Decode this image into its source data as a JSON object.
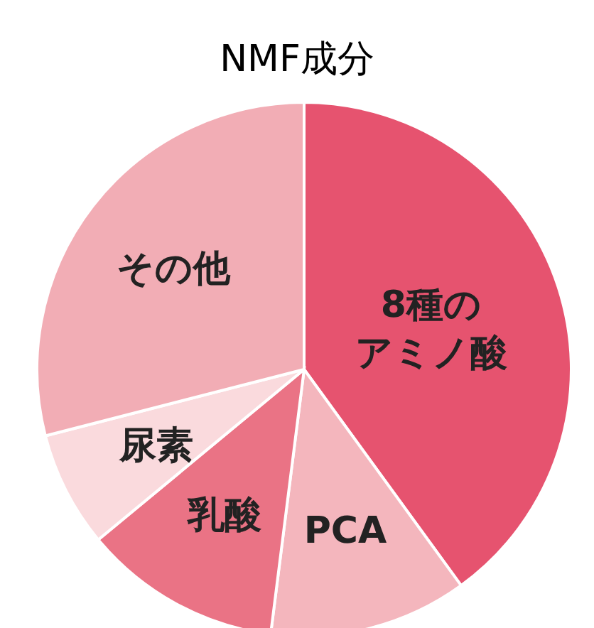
{
  "chart_data": {
    "type": "pie",
    "title": "NMF成分",
    "categories": [
      "8種のアミノ酸",
      "PCA",
      "乳酸",
      "尿素",
      "その他"
    ],
    "values": [
      40,
      12,
      12,
      7,
      29
    ],
    "colors": [
      "#e6536f",
      "#f4b6bd",
      "#ea7385",
      "#fadadd",
      "#f2adb5"
    ]
  }
}
